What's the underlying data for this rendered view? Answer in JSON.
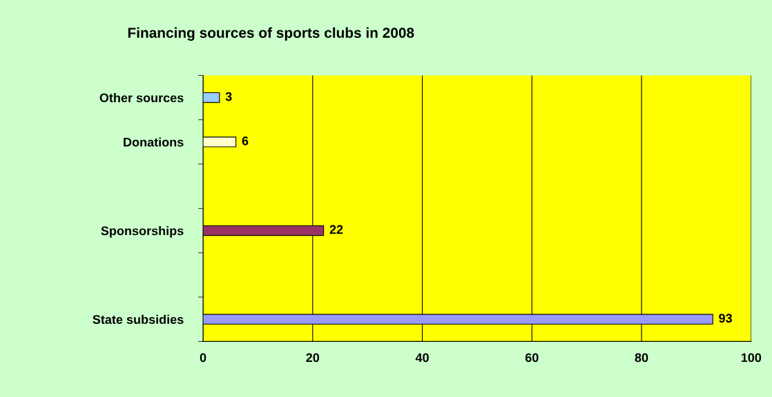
{
  "chart_data": {
    "type": "bar",
    "orientation": "horizontal",
    "title": "Financing sources of sports clubs in 2008",
    "categories": [
      "Other sources",
      "Donations",
      null,
      "Sponsorships",
      null,
      "State subsidies"
    ],
    "values": [
      3,
      6,
      null,
      22,
      null,
      93
    ],
    "colors": [
      "#99ccff",
      "#ffffcc",
      "#ffffff",
      "#993366",
      "#ffffff",
      "#9999ff"
    ],
    "xlim": [
      0,
      100
    ],
    "xticks": [
      0,
      20,
      40,
      60,
      80,
      100
    ],
    "grid": "x",
    "data_labels": true
  }
}
